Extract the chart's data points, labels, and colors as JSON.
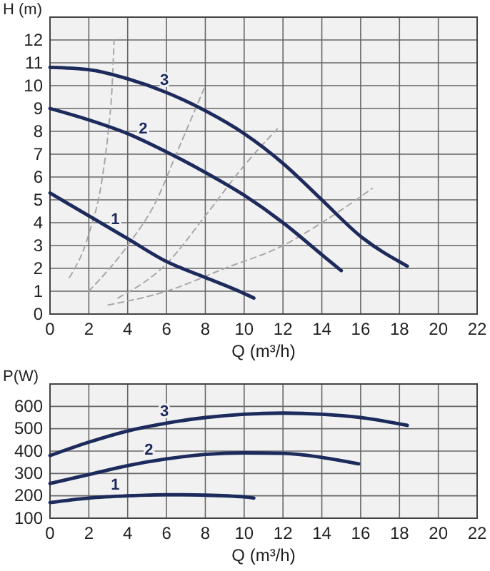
{
  "chart_data": [
    {
      "type": "line",
      "xlabel": "Q (m³/h)",
      "ylabel": "H (m)",
      "xlim": [
        0,
        22
      ],
      "xticks": [
        0,
        2,
        4,
        6,
        8,
        10,
        12,
        14,
        16,
        18,
        20,
        22
      ],
      "ylim": [
        0,
        13
      ],
      "yticks": [
        0,
        1,
        2,
        3,
        4,
        5,
        6,
        7,
        8,
        9,
        10,
        11,
        12
      ],
      "grid": true,
      "marker": "none",
      "series": [
        {
          "name": "3",
          "color": "#1c2a5c",
          "x": [
            0,
            2,
            4,
            6,
            8,
            10,
            12,
            14,
            16,
            18.4
          ],
          "values": [
            10.8,
            10.7,
            10.3,
            9.7,
            8.9,
            7.9,
            6.6,
            5.0,
            3.4,
            2.1
          ]
        },
        {
          "name": "2",
          "color": "#1c2a5c",
          "x": [
            0,
            2,
            4,
            6,
            8,
            10,
            12,
            14,
            15
          ],
          "values": [
            9.0,
            8.5,
            7.9,
            7.1,
            6.2,
            5.2,
            4.0,
            2.6,
            1.9
          ]
        },
        {
          "name": "1",
          "color": "#1c2a5c",
          "x": [
            0,
            2,
            4,
            6,
            8,
            10,
            10.5
          ],
          "values": [
            5.3,
            4.3,
            3.3,
            2.3,
            1.6,
            0.9,
            0.7
          ]
        },
        {
          "color": "#a8a8a8",
          "line_style": "dashed",
          "x": [
            1,
            2,
            2.7,
            3,
            3.2,
            3.3
          ],
          "values": [
            1.6,
            3.5,
            6,
            8,
            10,
            12
          ]
        },
        {
          "color": "#a8a8a8",
          "line_style": "dashed",
          "x": [
            2,
            4,
            5.5,
            6.5,
            7.5,
            8
          ],
          "values": [
            1.0,
            3,
            5,
            7,
            9,
            10
          ]
        },
        {
          "color": "#a8a8a8",
          "line_style": "dashed",
          "x": [
            3.5,
            6,
            8,
            10,
            11.7
          ],
          "values": [
            0.7,
            2.2,
            4.3,
            6.5,
            8.1
          ]
        },
        {
          "color": "#a8a8a8",
          "line_style": "dashed",
          "x": [
            3,
            6,
            9,
            12,
            14,
            16.6
          ],
          "values": [
            0.4,
            1,
            2,
            3,
            4,
            5.5
          ]
        }
      ]
    },
    {
      "type": "line",
      "xlabel": "Q (m³/h)",
      "ylabel": "P(W)",
      "xlim": [
        0,
        22
      ],
      "xticks": [
        0,
        2,
        4,
        6,
        8,
        10,
        12,
        14,
        16,
        18,
        20,
        22
      ],
      "ylim": [
        100,
        700
      ],
      "yticks": [
        100,
        200,
        300,
        400,
        500,
        600
      ],
      "grid": true,
      "marker": "none",
      "series": [
        {
          "name": "3",
          "color": "#1c2a5c",
          "x": [
            0,
            2,
            4,
            6,
            8,
            10,
            12,
            14,
            16,
            18.4
          ],
          "values": [
            380,
            440,
            490,
            525,
            550,
            565,
            570,
            565,
            550,
            515
          ]
        },
        {
          "name": "2",
          "color": "#1c2a5c",
          "x": [
            0,
            2,
            4,
            6,
            8,
            10,
            12,
            14,
            15.9
          ],
          "values": [
            255,
            295,
            335,
            365,
            385,
            392,
            390,
            372,
            343
          ]
        },
        {
          "name": "1",
          "color": "#1c2a5c",
          "x": [
            0,
            2,
            4,
            6,
            8,
            10,
            10.5
          ],
          "values": [
            170,
            190,
            200,
            205,
            203,
            195,
            190
          ]
        }
      ]
    }
  ]
}
